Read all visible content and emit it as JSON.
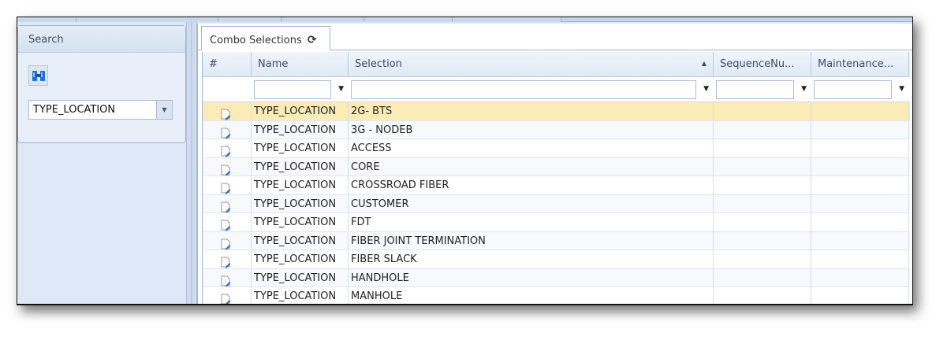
{
  "left_panel": {
    "title": "Search",
    "find_icon": "binoculars-icon",
    "combo_value": "TYPE_LOCATION"
  },
  "tab": {
    "label": "Combo Selections",
    "refresh_icon": "refresh-icon"
  },
  "grid": {
    "columns": [
      "#",
      "Name",
      "Selection",
      "SequenceNu...",
      "Maintenance..."
    ],
    "sort": {
      "column": "Selection",
      "direction": "ascending"
    },
    "rows": [
      {
        "name": "TYPE_LOCATION",
        "selection": "2G- BTS",
        "selected": true
      },
      {
        "name": "TYPE_LOCATION",
        "selection": "3G - NODEB"
      },
      {
        "name": "TYPE_LOCATION",
        "selection": "ACCESS"
      },
      {
        "name": "TYPE_LOCATION",
        "selection": "CORE"
      },
      {
        "name": "TYPE_LOCATION",
        "selection": "CROSSROAD FIBER"
      },
      {
        "name": "TYPE_LOCATION",
        "selection": "CUSTOMER"
      },
      {
        "name": "TYPE_LOCATION",
        "selection": "FDT"
      },
      {
        "name": "TYPE_LOCATION",
        "selection": "FIBER JOINT TERMINATION"
      },
      {
        "name": "TYPE_LOCATION",
        "selection": "FIBER SLACK"
      },
      {
        "name": "TYPE_LOCATION",
        "selection": "HANDHOLE"
      },
      {
        "name": "TYPE_LOCATION",
        "selection": "MANHOLE"
      }
    ]
  },
  "colors": {
    "selected_row": "#fbecb7",
    "border": "#9db3d4"
  }
}
